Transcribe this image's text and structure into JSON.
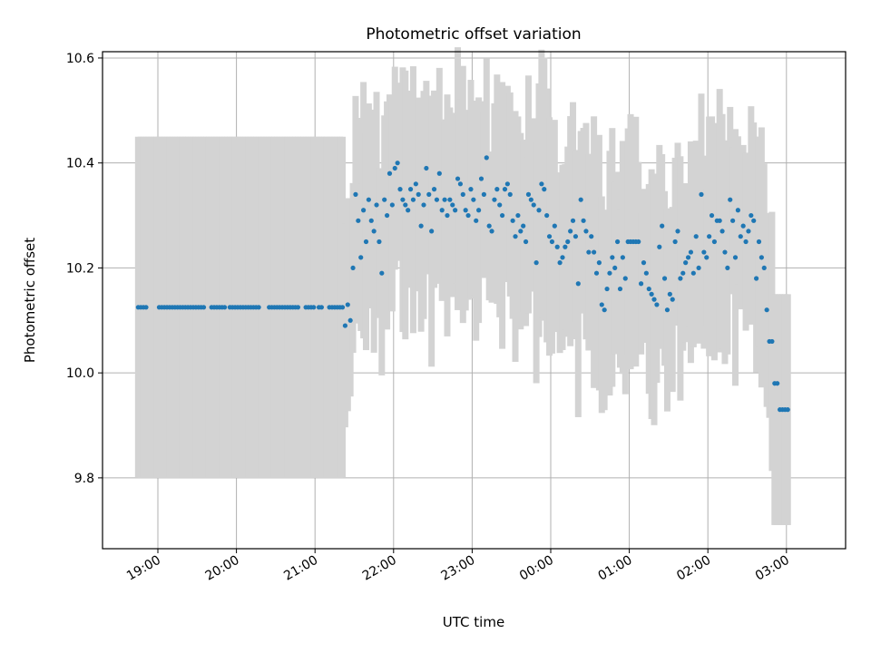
{
  "chart_data": {
    "type": "scatter",
    "title": "Photometric offset variation",
    "xlabel": "UTC time",
    "ylabel": "Photometric offset",
    "x_tick_labels": [
      "19:00",
      "20:00",
      "21:00",
      "22:00",
      "23:00",
      "00:00",
      "01:00",
      "02:00",
      "03:00"
    ],
    "y_tick_labels": [
      "9.8",
      "10.0",
      "10.2",
      "10.4",
      "10.6"
    ],
    "ylim": [
      9.665,
      10.612
    ],
    "xlim": [
      "18:18",
      "03:45 (next day)"
    ],
    "grid": true,
    "legend": "none",
    "marker_color": "#1f77b4",
    "errorbar_color": "#d3d3d3",
    "series": [
      {
        "x_start": "18:45",
        "x_step_minutes": 2,
        "values": [
          10.125,
          10.125,
          10.125,
          10.125,
          10.125,
          10.125,
          10.125,
          10.125,
          10.125,
          10.125,
          10.125,
          10.125,
          10.125,
          10.125,
          10.125,
          10.125,
          10.125,
          10.125,
          10.125,
          10.125,
          10.125,
          10.125,
          10.125,
          10.125,
          10.125,
          10.125,
          10.125,
          10.125,
          10.125,
          10.125,
          10.125,
          10.125,
          10.125,
          10.125,
          10.125,
          10.125,
          10.125,
          10.125,
          10.125,
          10.125,
          10.125,
          10.125,
          10.125,
          10.125,
          10.125,
          10.125,
          10.125,
          10.125,
          10.125,
          10.125,
          10.125,
          10.125,
          10.125,
          10.125,
          10.125,
          10.125,
          10.125,
          10.125,
          10.125,
          10.125,
          10.125,
          10.125,
          10.125,
          10.125,
          10.125,
          10.125,
          10.125,
          10.125,
          10.125,
          10.125,
          10.125,
          10.125,
          10.125,
          10.125,
          10.125,
          10.125,
          10.125,
          10.125,
          10.125,
          10.09,
          10.13,
          10.1,
          10.2,
          10.34,
          10.29,
          10.22,
          10.31,
          10.25,
          10.33,
          10.29,
          10.27,
          10.32,
          10.25,
          10.19,
          10.33,
          10.3,
          10.38,
          10.32,
          10.39,
          10.4,
          10.35,
          10.33,
          10.32,
          10.31,
          10.35,
          10.33,
          10.36,
          10.34,
          10.28,
          10.32,
          10.39,
          10.34,
          10.27,
          10.35,
          10.33,
          10.38,
          10.31,
          10.33,
          10.3,
          10.33,
          10.32,
          10.31,
          10.37,
          10.36,
          10.34,
          10.31,
          10.3,
          10.35,
          10.33,
          10.29,
          10.31,
          10.37,
          10.34,
          10.41,
          10.28,
          10.27,
          10.33,
          10.35,
          10.32,
          10.3,
          10.35,
          10.36,
          10.34,
          10.29,
          10.26,
          10.3,
          10.27,
          10.28,
          10.25,
          10.34,
          10.33,
          10.32,
          10.21,
          10.31,
          10.36,
          10.35,
          10.3,
          10.26,
          10.25,
          10.28,
          10.24,
          10.21,
          10.22,
          10.24,
          10.25,
          10.27,
          10.29,
          10.26,
          10.17,
          10.33,
          10.29,
          10.27,
          10.23,
          10.26,
          10.23,
          10.19,
          10.21,
          10.13,
          10.12,
          10.16,
          10.19,
          10.22,
          10.2,
          10.25,
          10.16,
          10.22,
          10.18,
          10.25,
          10.25,
          10.25,
          10.25,
          10.25,
          10.17,
          10.21,
          10.19,
          10.16,
          10.15,
          10.14,
          10.13,
          10.24,
          10.28,
          10.18,
          10.12,
          10.15,
          10.14,
          10.25,
          10.27,
          10.18,
          10.19,
          10.21,
          10.22,
          10.23,
          10.19,
          10.26,
          10.2,
          10.34,
          10.23,
          10.22,
          10.26,
          10.3,
          10.25,
          10.29,
          10.29,
          10.27,
          10.23,
          10.2,
          10.33,
          10.29,
          10.22,
          10.31,
          10.26,
          10.28,
          10.25,
          10.27,
          10.3,
          10.29,
          10.18,
          10.25,
          10.22,
          10.2,
          10.12,
          10.06,
          10.06,
          9.98,
          9.98,
          9.93,
          9.93,
          9.93,
          9.93
        ]
      }
    ]
  }
}
